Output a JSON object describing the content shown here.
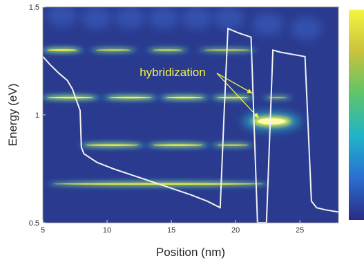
{
  "colors": {
    "background": "#2a3b8f",
    "band": "#f5f542",
    "band_glow": "#2ab3c8",
    "potential": "#f2f2f2",
    "annotation": "#f5f542",
    "colorbar": [
      "#2b2a83",
      "#2a6fd1",
      "#1fb4c9",
      "#5ec46a",
      "#c8c33b",
      "#f5f542"
    ]
  },
  "chart_data": {
    "type": "heatmap",
    "title": "",
    "xlabel": "Position (nm)",
    "ylabel": "Energy (eV)",
    "xlim": [
      5,
      28
    ],
    "ylim": [
      0.5,
      1.5
    ],
    "x_ticks": [
      5,
      10,
      15,
      20,
      25
    ],
    "y_ticks": [
      0.5,
      1,
      1.5
    ],
    "colorbar": true,
    "bands": [
      {
        "x": [
          5,
          8
        ],
        "y": 1.3,
        "intensity": 1.0
      },
      {
        "x": [
          8.8,
          12.2
        ],
        "y": 1.3,
        "intensity": 0.7
      },
      {
        "x": [
          13.2,
          16.2
        ],
        "y": 1.3,
        "intensity": 0.7
      },
      {
        "x": [
          17.2,
          21.5
        ],
        "y": 1.3,
        "intensity": 0.6
      },
      {
        "x": [
          5,
          9.3
        ],
        "y": 1.08,
        "intensity": 1.0
      },
      {
        "x": [
          9.8,
          13.8
        ],
        "y": 1.08,
        "intensity": 0.95
      },
      {
        "x": [
          14.2,
          17.8
        ],
        "y": 1.08,
        "intensity": 0.95
      },
      {
        "x": [
          18.2,
          21.3
        ],
        "y": 1.08,
        "intensity": 0.85
      },
      {
        "x": [
          22.2,
          24.3
        ],
        "y": 1.08,
        "intensity": 0.5
      },
      {
        "x": [
          8,
          12.8
        ],
        "y": 0.86,
        "intensity": 0.9
      },
      {
        "x": [
          13.2,
          17.8
        ],
        "y": 0.86,
        "intensity": 0.9
      },
      {
        "x": [
          18.2,
          21.3
        ],
        "y": 0.86,
        "intensity": 0.65
      },
      {
        "x": [
          5.5,
          22.5
        ],
        "y": 0.68,
        "intensity": 0.85
      }
    ],
    "hotspot": {
      "x": 22.8,
      "y": 0.97
    },
    "potential": {
      "x": [
        5,
        5.6,
        6.3,
        6.9,
        7.3,
        7.6,
        7.9,
        8,
        8.2,
        9.2,
        10.5,
        12,
        13.5,
        15,
        16.5,
        17.8,
        18.8,
        19.1,
        19.4,
        20.2,
        21.2,
        21.7,
        22.4,
        22.9,
        23.5,
        25.4,
        25.9,
        26.3,
        27,
        28
      ],
      "y": [
        1.27,
        1.23,
        1.19,
        1.16,
        1.12,
        1.07,
        1.02,
        0.85,
        0.82,
        0.78,
        0.75,
        0.72,
        0.69,
        0.66,
        0.63,
        0.6,
        0.57,
        1.0,
        1.4,
        1.38,
        1.36,
        0.5,
        0.5,
        1.3,
        1.29,
        1.27,
        0.6,
        0.57,
        0.56,
        0.55
      ]
    },
    "annotations": [
      {
        "text": "hybridization",
        "x": 15.1,
        "y": 1.18,
        "arrows_to": [
          [
            21.3,
            1.1
          ],
          [
            21.8,
            0.985
          ]
        ]
      }
    ]
  }
}
